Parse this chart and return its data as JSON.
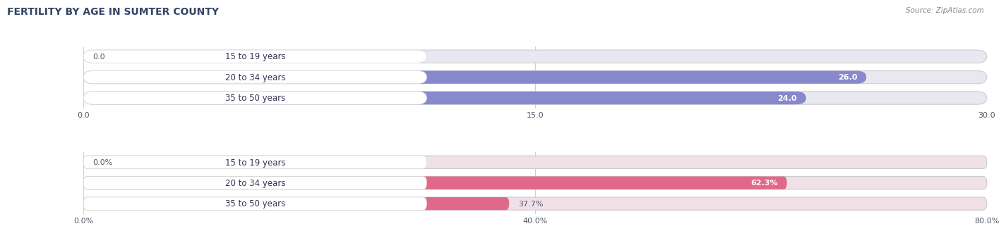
{
  "title": "FERTILITY BY AGE IN SUMTER COUNTY",
  "source": "Source: ZipAtlas.com",
  "top_chart": {
    "categories": [
      "15 to 19 years",
      "20 to 34 years",
      "35 to 50 years"
    ],
    "values": [
      0.0,
      26.0,
      24.0
    ],
    "xmax": 30.0,
    "xticks": [
      0.0,
      15.0,
      30.0
    ],
    "xtick_labels": [
      "0.0",
      "15.0",
      "30.0"
    ],
    "bar_color": "#8888cc",
    "bar_bg_color": "#e0e0f0",
    "outer_bg_color": "#e8e8f0"
  },
  "bottom_chart": {
    "categories": [
      "15 to 19 years",
      "20 to 34 years",
      "35 to 50 years"
    ],
    "values": [
      0.0,
      62.3,
      37.7
    ],
    "xmax": 80.0,
    "xticks": [
      0.0,
      40.0,
      80.0
    ],
    "xtick_labels": [
      "0.0%",
      "40.0%",
      "80.0%"
    ],
    "bar_color": "#e06888",
    "bar_bg_color": "#f0d8e0",
    "outer_bg_color": "#f0e0e8"
  },
  "label_fontsize": 8.5,
  "value_fontsize": 8.0,
  "tick_fontsize": 8.0,
  "title_fontsize": 10,
  "source_fontsize": 7.5,
  "bar_height": 0.62,
  "fig_bg_color": "#ffffff",
  "label_pill_color": "#ffffff",
  "label_text_color": "#333355"
}
